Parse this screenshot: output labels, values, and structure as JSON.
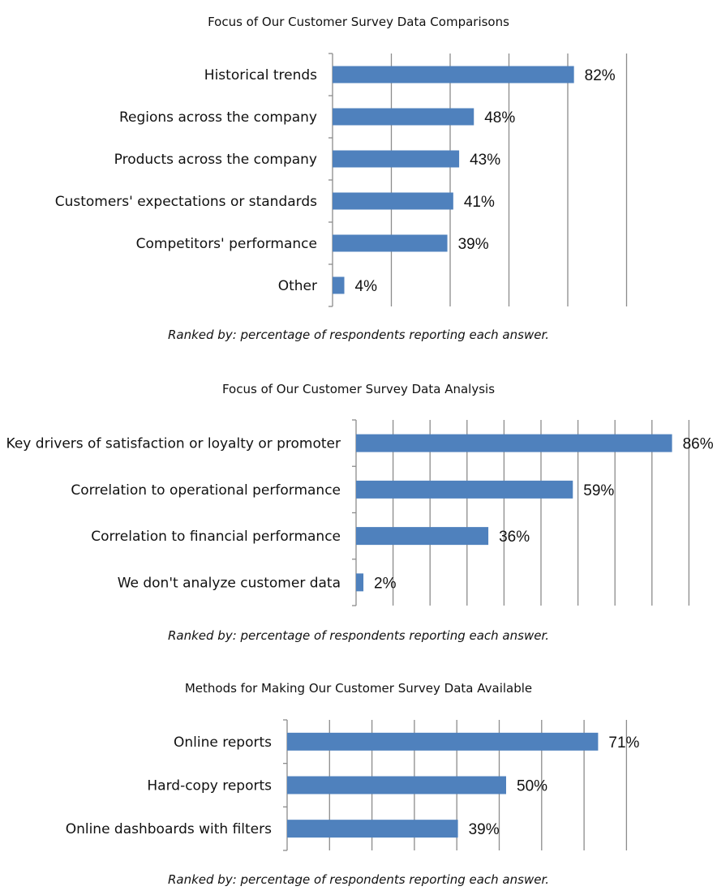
{
  "chart_data": [
    {
      "type": "bar",
      "orientation": "horizontal",
      "title": "Focus of Our Customer Survey Data Comparisons",
      "caption": "Ranked by: percentage of respondents reporting each answer.",
      "categories": [
        "Historical trends",
        "Regions across the company",
        "Products across the company",
        "Customers' expectations or standards",
        "Competitors' performance",
        "Other"
      ],
      "values": [
        82,
        48,
        43,
        41,
        39,
        4
      ],
      "value_labels": [
        "82%",
        "48%",
        "43%",
        "41%",
        "39%",
        "4%"
      ],
      "xlim": [
        0,
        100
      ],
      "grid": true,
      "bar_color": "#4F81BD"
    },
    {
      "type": "bar",
      "orientation": "horizontal",
      "title": "Focus of Our Customer Survey Data Analysis",
      "caption": "Ranked by: percentage of respondents reporting each answer.",
      "categories": [
        "Key drivers of satisfaction or loyalty or promoter",
        "Correlation to operational performance",
        "Correlation to financial performance",
        "We don't analyze customer data"
      ],
      "values": [
        86,
        59,
        36,
        2
      ],
      "value_labels": [
        "86%",
        "59%",
        "36%",
        "2%"
      ],
      "xlim": [
        0,
        90
      ],
      "grid": true,
      "bar_color": "#4F81BD"
    },
    {
      "type": "bar",
      "orientation": "horizontal",
      "title": "Methods for Making Our Customer Survey Data Available",
      "caption": "Ranked by: percentage of respondents reporting each answer.",
      "categories": [
        "Online reports",
        "Hard-copy reports",
        "Online dashboards with filters"
      ],
      "values": [
        71,
        50,
        39
      ],
      "value_labels": [
        "71%",
        "50%",
        "39%"
      ],
      "xlim": [
        0,
        80
      ],
      "grid": true,
      "bar_color": "#4F81BD"
    }
  ]
}
